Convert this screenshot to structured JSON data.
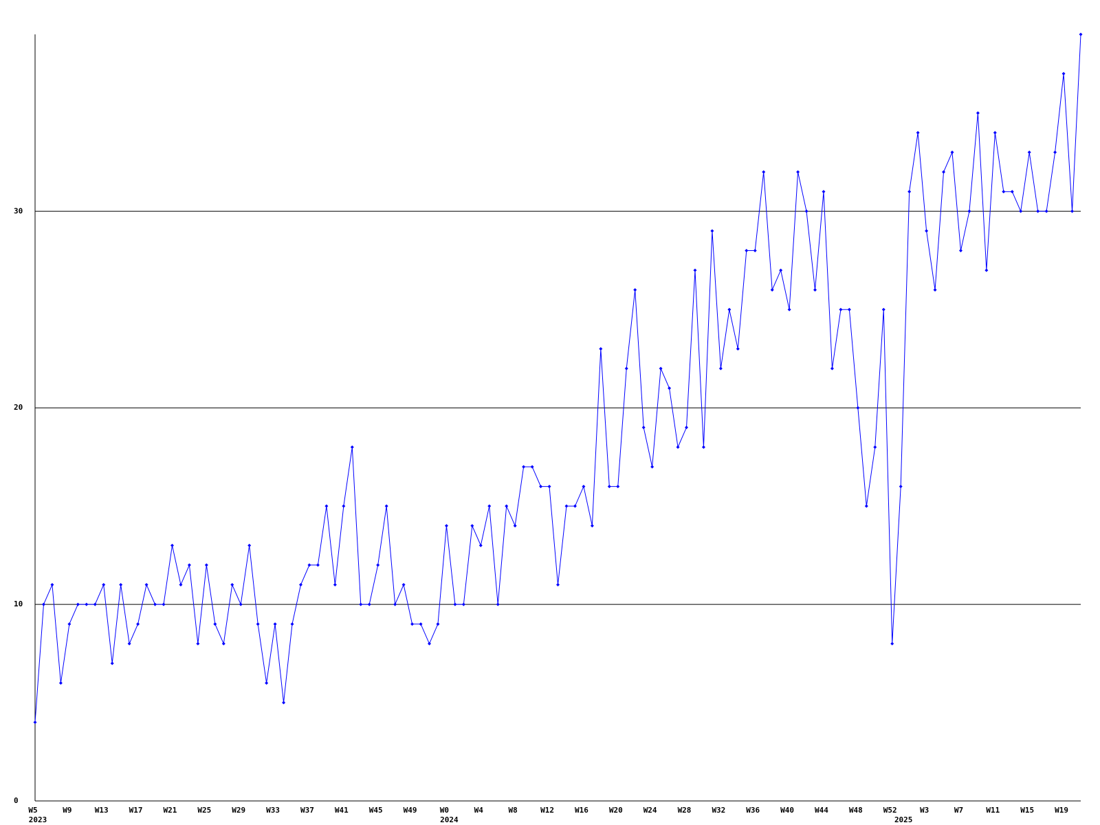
{
  "chart_data": {
    "type": "line",
    "categories": [
      "W5",
      null,
      null,
      null,
      "W9",
      null,
      null,
      null,
      "W13",
      null,
      null,
      null,
      "W17",
      null,
      null,
      null,
      "W21",
      null,
      null,
      null,
      "W25",
      null,
      null,
      null,
      "W29",
      null,
      null,
      null,
      "W33",
      null,
      null,
      null,
      "W37",
      null,
      null,
      null,
      "W41",
      null,
      null,
      null,
      "W45",
      null,
      null,
      null,
      "W49",
      null,
      null,
      null,
      "W0",
      null,
      null,
      null,
      "W4",
      null,
      null,
      null,
      "W8",
      null,
      null,
      null,
      "W12",
      null,
      null,
      null,
      "W16",
      null,
      null,
      null,
      "W20",
      null,
      null,
      null,
      "W24",
      null,
      null,
      null,
      "W28",
      null,
      null,
      null,
      "W32",
      null,
      null,
      null,
      "W36",
      null,
      null,
      null,
      "W40",
      null,
      null,
      null,
      "W44",
      null,
      null,
      null,
      "W48",
      null,
      null,
      null,
      "W52",
      null,
      null,
      null,
      "W3",
      null,
      null,
      null,
      "W7",
      null,
      null,
      null,
      "W11",
      null,
      null,
      null,
      "W15",
      null,
      null,
      null,
      "W19",
      null,
      null
    ],
    "x_group_labels": [
      "2023",
      null,
      null,
      null,
      null,
      null,
      null,
      null,
      null,
      null,
      null,
      null,
      null,
      null,
      null,
      null,
      null,
      null,
      null,
      null,
      null,
      null,
      null,
      null,
      null,
      null,
      null,
      null,
      null,
      null,
      null,
      null,
      null,
      null,
      null,
      null,
      null,
      null,
      null,
      null,
      null,
      null,
      null,
      null,
      null,
      null,
      null,
      null,
      "2024",
      null,
      null,
      null,
      null,
      null,
      null,
      null,
      null,
      null,
      null,
      null,
      null,
      null,
      null,
      null,
      null,
      null,
      null,
      null,
      null,
      null,
      null,
      null,
      null,
      null,
      null,
      null,
      null,
      null,
      null,
      null,
      null,
      null,
      null,
      null,
      null,
      null,
      null,
      null,
      null,
      null,
      null,
      null,
      null,
      null,
      null,
      null,
      null,
      null,
      null,
      null,
      null,
      "2025",
      null,
      null,
      null,
      null,
      null,
      null,
      null,
      null,
      null,
      null,
      null,
      null,
      null,
      null,
      null,
      null,
      null,
      null,
      null,
      null,
      null
    ],
    "series": [
      {
        "color": "#0000ff",
        "values": [
          4,
          10,
          11,
          6,
          9,
          10,
          10,
          10,
          11,
          7,
          11,
          8,
          9,
          11,
          10,
          10,
          13,
          11,
          12,
          8,
          12,
          9,
          8,
          11,
          10,
          13,
          9,
          6,
          9,
          5,
          9,
          11,
          12,
          12,
          15,
          11,
          15,
          18,
          10,
          10,
          12,
          15,
          10,
          11,
          9,
          9,
          8,
          9,
          14,
          10,
          10,
          14,
          13,
          15,
          10,
          15,
          14,
          17,
          17,
          16,
          16,
          11,
          15,
          15,
          16,
          14,
          23,
          16,
          16,
          22,
          26,
          19,
          17,
          22,
          21,
          18,
          19,
          27,
          18,
          29,
          22,
          25,
          23,
          28,
          28,
          32,
          26,
          27,
          25,
          32,
          30,
          26,
          31,
          22,
          25,
          25,
          20,
          15,
          18,
          25,
          8,
          16,
          31,
          34,
          29,
          26,
          32,
          33,
          28,
          30,
          35,
          27,
          34,
          31,
          31,
          30,
          33,
          30,
          30,
          33,
          37,
          30,
          39
        ]
      }
    ],
    "ylim": [
      0,
      39
    ],
    "yticks": [
      0,
      10,
      20,
      30
    ],
    "grid": true
  }
}
